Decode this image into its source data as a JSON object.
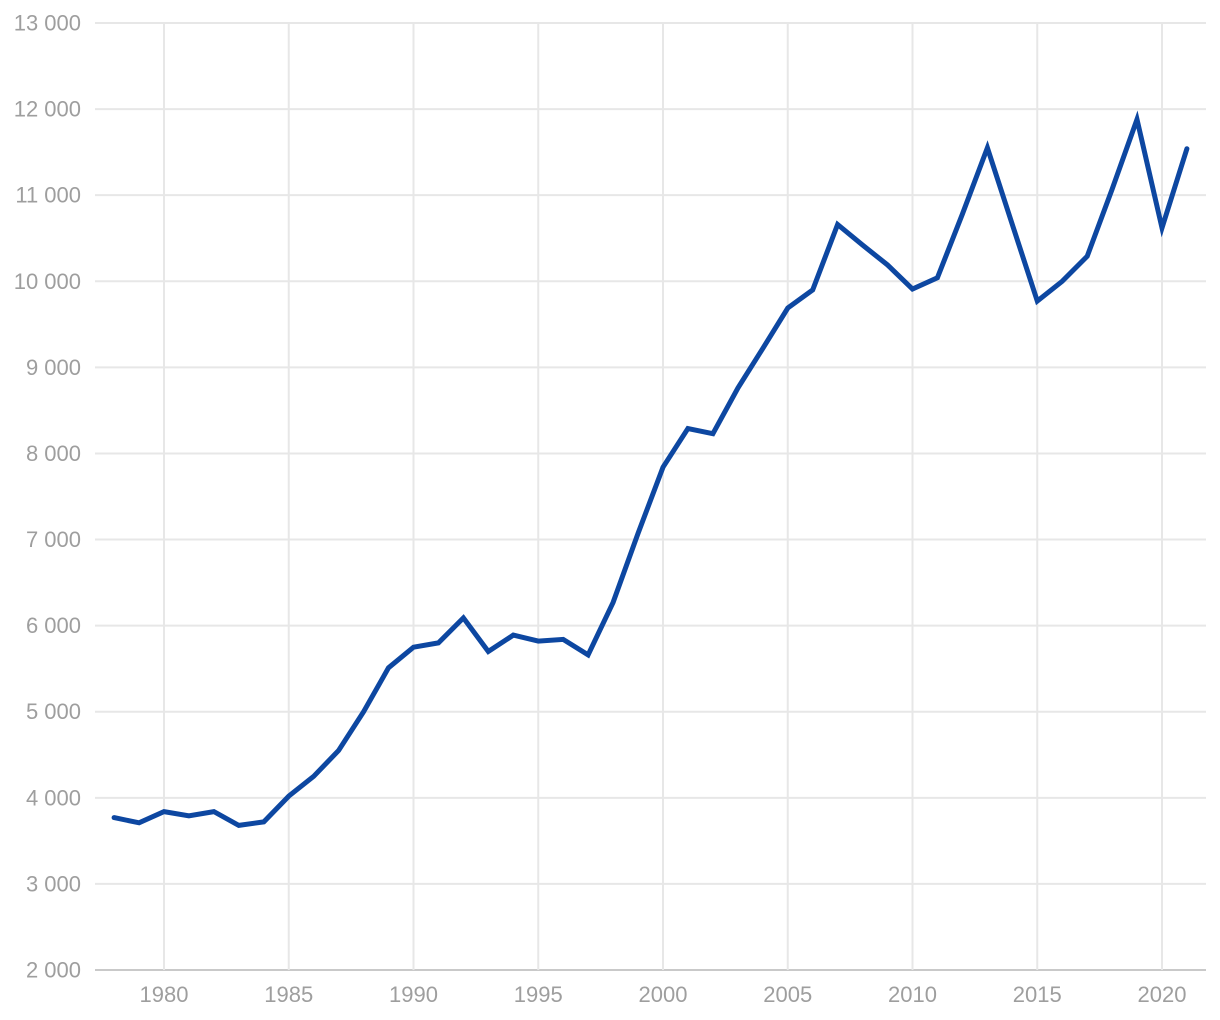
{
  "chart_data": {
    "type": "line",
    "x": [
      1978,
      1979,
      1980,
      1981,
      1982,
      1983,
      1984,
      1985,
      1986,
      1987,
      1988,
      1989,
      1990,
      1991,
      1992,
      1993,
      1994,
      1995,
      1996,
      1997,
      1998,
      1999,
      2000,
      2001,
      2002,
      2003,
      2004,
      2005,
      2006,
      2007,
      2008,
      2009,
      2010,
      2011,
      2012,
      2013,
      2014,
      2015,
      2016,
      2017,
      2018,
      2019,
      2020,
      2021
    ],
    "series": [
      {
        "name": "value",
        "values": [
          3770,
          3710,
          3840,
          3790,
          3840,
          3680,
          3720,
          4020,
          4250,
          4550,
          5000,
          5510,
          5750,
          5800,
          6090,
          5700,
          5890,
          5820,
          5840,
          5660,
          6270,
          7070,
          7840,
          8290,
          8230,
          8760,
          9220,
          9690,
          9900,
          10660,
          10420,
          10190,
          9910,
          10040,
          10780,
          11550,
          10660,
          9770,
          10000,
          10290,
          11070,
          11880,
          10620,
          11540
        ]
      }
    ],
    "xlabel": "",
    "ylabel": "",
    "ylim": [
      2000,
      13000
    ],
    "xlim": [
      1978,
      2021
    ],
    "grid": true,
    "legend_position": "none",
    "y_ticks": [
      2000,
      3000,
      4000,
      5000,
      6000,
      7000,
      8000,
      9000,
      10000,
      11000,
      12000,
      13000
    ],
    "y_tick_labels": [
      "2 000",
      "3 000",
      "4 000",
      "5 000",
      "6 000",
      "7 000",
      "8 000",
      "9 000",
      "10 000",
      "11 000",
      "12 000",
      "13 000"
    ],
    "x_ticks": [
      1980,
      1985,
      1990,
      1995,
      2000,
      2005,
      2010,
      2015,
      2020
    ],
    "x_tick_labels": [
      "1980",
      "1985",
      "1990",
      "1995",
      "2000",
      "2005",
      "2010",
      "2015",
      "2020"
    ],
    "colors": {
      "line": "#0D47A1",
      "gridline": "#E7E7E7",
      "axis_line": "#C9C9C9",
      "tick_label": "#9E9E9E",
      "background": "#FFFFFF"
    }
  }
}
